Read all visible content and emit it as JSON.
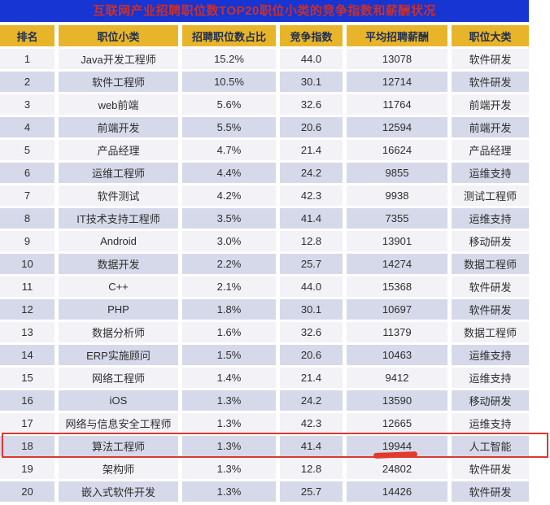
{
  "title": "互联网产业招聘职位数TOP20职位小类的竞争指数和薪酬状况",
  "colors": {
    "title_bar_bg": "#1635d2",
    "title_text": "#c8302c",
    "header_bg": "#e8b52a",
    "header_text": "#1f2d50",
    "row_odd_bg": "#f2f2f7",
    "row_even_bg": "#d6d9e9",
    "cell_text": "#2e2e2e",
    "annotation_red": "#d93a32"
  },
  "annotations": {
    "highlighted_rank": "18",
    "highlighted_row_label": "算法工程师",
    "underlined_value": "19944",
    "highlight_style": "red-rectangle-outline",
    "underline_style": "hand-drawn-red-stroke"
  },
  "chart_data": {
    "type": "table",
    "title": "互联网产业招聘职位数TOP20职位小类的竞争指数和薪酬状况",
    "columns": [
      "排名",
      "职位小类",
      "招聘职位数占比",
      "竞争指数",
      "平均招聘薪酬",
      "职位大类"
    ],
    "rows": [
      [
        "1",
        "Java开发工程师",
        "15.2%",
        "44.0",
        "13078",
        "软件研发"
      ],
      [
        "2",
        "软件工程师",
        "10.5%",
        "30.1",
        "12714",
        "软件研发"
      ],
      [
        "3",
        "web前端",
        "5.6%",
        "32.6",
        "11764",
        "前端开发"
      ],
      [
        "4",
        "前端开发",
        "5.5%",
        "20.6",
        "12594",
        "前端开发"
      ],
      [
        "5",
        "产品经理",
        "4.7%",
        "21.4",
        "16624",
        "产品经理"
      ],
      [
        "6",
        "运维工程师",
        "4.4%",
        "24.2",
        "9855",
        "运维支持"
      ],
      [
        "7",
        "软件测试",
        "4.2%",
        "42.3",
        "9938",
        "测试工程师"
      ],
      [
        "8",
        "IT技术支持工程师",
        "3.5%",
        "41.4",
        "7355",
        "运维支持"
      ],
      [
        "9",
        "Android",
        "3.0%",
        "12.8",
        "13901",
        "移动研发"
      ],
      [
        "10",
        "数据开发",
        "2.2%",
        "25.7",
        "14274",
        "数据工程师"
      ],
      [
        "11",
        "C++",
        "2.1%",
        "44.0",
        "15368",
        "软件研发"
      ],
      [
        "12",
        "PHP",
        "1.8%",
        "30.1",
        "10697",
        "软件研发"
      ],
      [
        "13",
        "数据分析师",
        "1.6%",
        "32.6",
        "11379",
        "数据工程师"
      ],
      [
        "14",
        "ERP实施顾问",
        "1.5%",
        "20.6",
        "10463",
        "运维支持"
      ],
      [
        "15",
        "网络工程师",
        "1.4%",
        "21.4",
        "9412",
        "运维支持"
      ],
      [
        "16",
        "iOS",
        "1.3%",
        "24.2",
        "13590",
        "移动研发"
      ],
      [
        "17",
        "网络与信息安全工程师",
        "1.3%",
        "42.3",
        "12665",
        "运维支持"
      ],
      [
        "18",
        "算法工程师",
        "1.3%",
        "41.4",
        "19944",
        "人工智能"
      ],
      [
        "19",
        "架构师",
        "1.3%",
        "12.8",
        "24802",
        "软件研发"
      ],
      [
        "20",
        "嵌入式软件开发",
        "1.3%",
        "25.7",
        "14426",
        "软件研发"
      ]
    ]
  }
}
